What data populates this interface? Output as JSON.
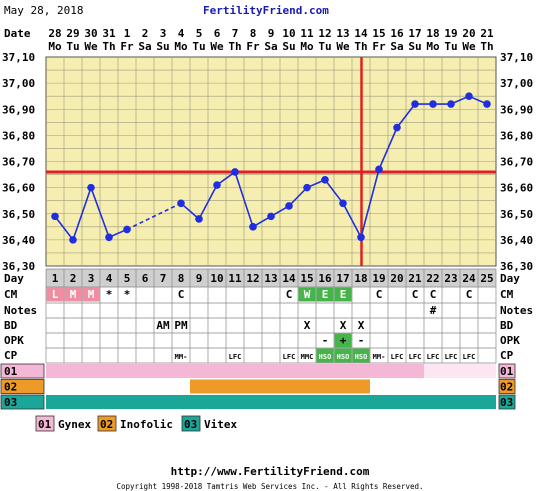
{
  "header": {
    "date": "May 28, 2018",
    "site": "FertilityFriend.com"
  },
  "footer": {
    "url": "http://www.FertilityFriend.com",
    "copyright": "Copyright 1998-2018 Tamtris Web Services Inc. - All Rights Reserved."
  },
  "colors": {
    "plot_bg": "#f6eeb0",
    "line": "#1f2fe0",
    "coverline": "#e02020",
    "pink": "#f4b8d6",
    "orange": "#ee9a28",
    "teal": "#1aa79a",
    "green": "#46b44a",
    "period": "#ee8ea0"
  },
  "chart_data": {
    "type": "line",
    "title": "",
    "date_label": "Date",
    "day_label": "Day",
    "dates": [
      "28",
      "29",
      "30",
      "31",
      "1",
      "2",
      "3",
      "4",
      "5",
      "6",
      "7",
      "8",
      "9",
      "10",
      "11",
      "12",
      "13",
      "14",
      "15",
      "16",
      "17",
      "18",
      "19",
      "20",
      "21"
    ],
    "weekdays": [
      "Mo",
      "Tu",
      "We",
      "Th",
      "Fr",
      "Sa",
      "Su",
      "Mo",
      "Tu",
      "We",
      "Th",
      "Fr",
      "Sa",
      "Su",
      "Mo",
      "Tu",
      "We",
      "Th",
      "Fr",
      "Sa",
      "Su",
      "Mo",
      "Tu",
      "We",
      "Th"
    ],
    "days": [
      1,
      2,
      3,
      4,
      5,
      6,
      7,
      8,
      9,
      10,
      11,
      12,
      13,
      14,
      15,
      16,
      17,
      18,
      19,
      20,
      21,
      22,
      23,
      24,
      25
    ],
    "temps": [
      36.49,
      36.4,
      36.6,
      36.41,
      36.44,
      null,
      null,
      36.54,
      36.48,
      36.61,
      36.66,
      36.45,
      36.49,
      36.53,
      36.6,
      36.63,
      36.54,
      36.41,
      36.67,
      36.83,
      36.92,
      36.92,
      36.92,
      36.95,
      36.92
    ],
    "ylim": [
      36.3,
      37.1
    ],
    "yticks": [
      "37,10",
      "37,00",
      "36,90",
      "36,80",
      "36,70",
      "36,60",
      "36,50",
      "36,40",
      "36,30"
    ],
    "coverline": 36.66,
    "ovulation_day": 18,
    "grid": true
  },
  "rows": {
    "labels": [
      "CM",
      "Notes",
      "BD",
      "OPK",
      "CP"
    ],
    "cm": [
      "L",
      "M",
      "M",
      "*",
      "*",
      "",
      "",
      "C",
      "",
      "",
      "",
      "",
      "",
      "C",
      "W",
      "E",
      "E",
      "",
      "C",
      "",
      "C",
      "C",
      "",
      "C",
      ""
    ],
    "notes": [
      "",
      "",
      "",
      "",
      "",
      "",
      "",
      "",
      "",
      "",
      "",
      "",
      "",
      "",
      "",
      "",
      "",
      "",
      "",
      "",
      "",
      "#",
      "",
      "",
      ""
    ],
    "bd": [
      "",
      "",
      "",
      "",
      "",
      "",
      "AM",
      "PM",
      "",
      "",
      "",
      "",
      "",
      "",
      "X",
      "",
      "X",
      "X",
      "",
      "",
      "",
      "",
      "",
      "",
      ""
    ],
    "opk": [
      "",
      "",
      "",
      "",
      "",
      "",
      "",
      "",
      "",
      "",
      "",
      "",
      "",
      "",
      "",
      "-",
      "+",
      "-",
      "",
      "",
      "",
      "",
      "",
      "",
      ""
    ],
    "cp": [
      "",
      "",
      "",
      "",
      "",
      "",
      "",
      "MM-",
      "",
      "",
      "LFC",
      "",
      "",
      "LFC",
      "MMC",
      "HSO",
      "HSO",
      "HSO",
      "MM-",
      "LFC",
      "LFC",
      "LFC",
      "LFC",
      "LFC",
      ""
    ]
  },
  "meds": [
    {
      "code": "01",
      "name": "Gynex",
      "color": "#f4b8d6",
      "start": 1,
      "end": 21
    },
    {
      "code": "02",
      "name": "Inofolic",
      "color": "#ee9a28",
      "start": 9,
      "end": 18
    },
    {
      "code": "03",
      "name": "Vitex",
      "color": "#1aa79a",
      "start": 1,
      "end": 25
    }
  ]
}
